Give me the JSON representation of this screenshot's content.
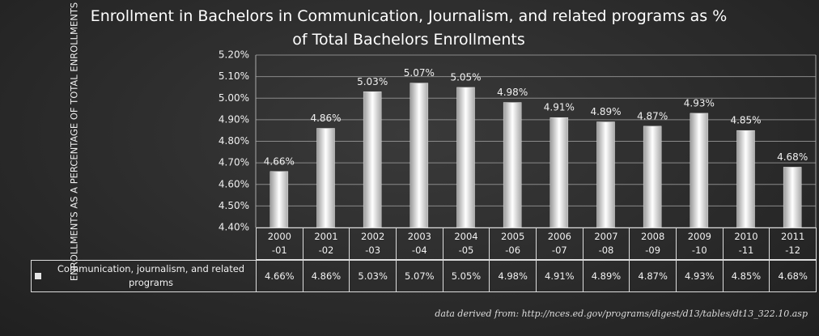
{
  "chart_data": {
    "type": "bar",
    "title": "Enrollment in Bachelors in Communication, Journalism, and related programs as % of Total Bachelors Enrollments",
    "y_label": "ENROLLMENTS AS A PERCENTAGE OF TOTAL ENROLLMENTS",
    "categories": [
      "2000 -01",
      "2001 -02",
      "2002 -03",
      "2003 -04",
      "2004 -05",
      "2005 -06",
      "2006 -07",
      "2007 -08",
      "2008 -09",
      "2009 -10",
      "2010 -11",
      "2011 -12"
    ],
    "series": [
      {
        "name": "Communication, journalism, and related programs",
        "color": "#e6e6e6",
        "values": [
          4.66,
          4.86,
          5.03,
          5.07,
          5.05,
          4.98,
          4.91,
          4.89,
          4.87,
          4.93,
          4.85,
          4.68
        ],
        "value_labels": [
          "4.66%",
          "4.86%",
          "5.03%",
          "5.07%",
          "5.05%",
          "4.98%",
          "4.91%",
          "4.89%",
          "4.87%",
          "4.93%",
          "4.85%",
          "4.68%"
        ]
      }
    ],
    "ylim": [
      4.4,
      5.2
    ],
    "yticks": [
      {
        "value": 4.4,
        "label": "4.40%"
      },
      {
        "value": 4.5,
        "label": "4.50%"
      },
      {
        "value": 4.6,
        "label": "4.60%"
      },
      {
        "value": 4.7,
        "label": "4.70%"
      },
      {
        "value": 4.8,
        "label": "4.80%"
      },
      {
        "value": 4.9,
        "label": "4.90%"
      },
      {
        "value": 5.0,
        "label": "5.00%"
      },
      {
        "value": 5.1,
        "label": "5.10%"
      },
      {
        "value": 5.2,
        "label": "5.20%"
      }
    ],
    "grid": true,
    "source": "data derived from:  http://nces.ed.gov/programs/digest/d13/tables/dt13_322.10.asp"
  }
}
